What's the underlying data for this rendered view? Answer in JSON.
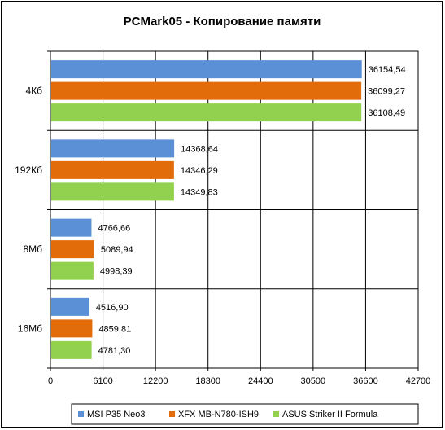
{
  "chart_data": {
    "type": "bar",
    "orientation": "horizontal",
    "title": "PCMark05 - Копирование памяти",
    "categories": [
      "4Кб",
      "192Кб",
      "8Мб",
      "16Мб"
    ],
    "series": [
      {
        "name": "MSI P35 Neo3",
        "color": "#5b8fd6",
        "values": [
          36154.54,
          14368.64,
          4766.66,
          4516.9
        ],
        "labels": [
          "36154,54",
          "14368,64",
          "4766,66",
          "4516,90"
        ]
      },
      {
        "name": "XFX MB-N780-ISH9",
        "color": "#e36c0a",
        "values": [
          36099.27,
          14346.29,
          5089.94,
          4859.81
        ],
        "labels": [
          "36099,27",
          "14346,29",
          "5089,94",
          "4859,81"
        ]
      },
      {
        "name": "ASUS Striker II Formula",
        "color": "#92d050",
        "values": [
          36108.49,
          14349.83,
          4998.39,
          4781.3
        ],
        "labels": [
          "36108,49",
          "14349,83",
          "4998,39",
          "4781,30"
        ]
      }
    ],
    "xlim": [
      0,
      42700
    ],
    "xticks": [
      "0",
      "6100",
      "12200",
      "18300",
      "24400",
      "30500",
      "36600",
      "42700"
    ],
    "grid": true,
    "legend": "bottom"
  }
}
